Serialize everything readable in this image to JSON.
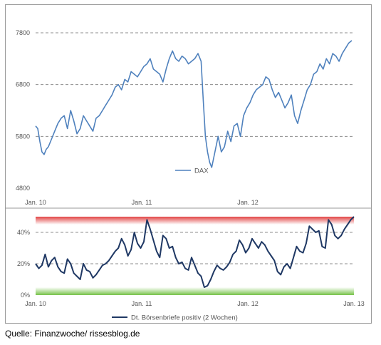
{
  "source": "Quelle: Finanzwoche/ rissesblog.de",
  "chart_data": [
    {
      "type": "line",
      "title": "",
      "xlabel": "",
      "ylabel": "",
      "x_ticks": [
        "Jan. 10",
        "Jan. 11",
        "Jan. 12"
      ],
      "y_ticks": [
        4800,
        5800,
        6800,
        7800
      ],
      "ylim": [
        4800,
        7800
      ],
      "xlim": [
        2010.0,
        2013.0
      ],
      "grid": "horizontal dashed",
      "legend_position": "bottom-center",
      "series": [
        {
          "name": "DAX",
          "color": "#4f81bd",
          "x": [
            2010.0,
            2010.02,
            2010.04,
            2010.06,
            2010.08,
            2010.1,
            2010.12,
            2010.15,
            2010.18,
            2010.21,
            2010.24,
            2010.27,
            2010.3,
            2010.33,
            2010.36,
            2010.39,
            2010.42,
            2010.45,
            2010.48,
            2010.51,
            2010.54,
            2010.57,
            2010.6,
            2010.63,
            2010.66,
            2010.69,
            2010.72,
            2010.75,
            2010.78,
            2010.81,
            2010.84,
            2010.87,
            2010.9,
            2010.93,
            2010.96,
            2010.99,
            2011.02,
            2011.05,
            2011.08,
            2011.11,
            2011.14,
            2011.17,
            2011.2,
            2011.23,
            2011.26,
            2011.29,
            2011.32,
            2011.35,
            2011.38,
            2011.41,
            2011.44,
            2011.47,
            2011.5,
            2011.53,
            2011.56,
            2011.58,
            2011.6,
            2011.62,
            2011.64,
            2011.66,
            2011.68,
            2011.7,
            2011.72,
            2011.75,
            2011.78,
            2011.81,
            2011.84,
            2011.87,
            2011.9,
            2011.93,
            2011.96,
            2011.99,
            2012.02,
            2012.05,
            2012.08,
            2012.11,
            2012.14,
            2012.17,
            2012.2,
            2012.23,
            2012.26,
            2012.29,
            2012.32,
            2012.35,
            2012.38,
            2012.41,
            2012.44,
            2012.47,
            2012.5,
            2012.53,
            2012.56,
            2012.59,
            2012.62,
            2012.65,
            2012.68,
            2012.71,
            2012.74,
            2012.77,
            2012.8,
            2012.83,
            2012.86,
            2012.89,
            2012.92,
            2012.95,
            2012.98
          ],
          "values": [
            6000,
            5950,
            5700,
            5500,
            5450,
            5550,
            5600,
            5750,
            5900,
            6050,
            6150,
            6200,
            5950,
            6300,
            6100,
            5850,
            5950,
            6200,
            6100,
            6000,
            5900,
            6150,
            6200,
            6300,
            6400,
            6500,
            6600,
            6750,
            6800,
            6700,
            6900,
            6850,
            7050,
            7000,
            6950,
            7050,
            7150,
            7200,
            7300,
            7100,
            7050,
            7000,
            6850,
            7100,
            7300,
            7450,
            7300,
            7250,
            7350,
            7300,
            7200,
            7250,
            7300,
            7400,
            7250,
            6500,
            5800,
            5500,
            5300,
            5200,
            5400,
            5600,
            5800,
            5500,
            5600,
            5900,
            5700,
            6000,
            6050,
            5800,
            6200,
            6350,
            6450,
            6600,
            6700,
            6750,
            6800,
            6950,
            6900,
            6700,
            6550,
            6650,
            6500,
            6350,
            6450,
            6600,
            6200,
            6050,
            6300,
            6500,
            6700,
            6800,
            7000,
            7050,
            7200,
            7100,
            7300,
            7200,
            7400,
            7350,
            7250,
            7400,
            7500,
            7600,
            7650
          ]
        }
      ]
    },
    {
      "type": "line",
      "title": "",
      "xlabel": "",
      "ylabel": "",
      "x_ticks": [
        "Jan. 10",
        "Jan. 11",
        "Jan. 12",
        "Jan. 13"
      ],
      "y_ticks": [
        "0%",
        "20%",
        "40%"
      ],
      "ylim": [
        0,
        50
      ],
      "xlim": [
        2010.0,
        2013.0
      ],
      "grid": "horizontal dashed",
      "legend_position": "bottom-center",
      "bands": [
        {
          "from": 45,
          "to": 50,
          "color": "#e03a3a"
        },
        {
          "from": 0,
          "to": 5,
          "color": "#6fbf3f"
        }
      ],
      "series": [
        {
          "name": "Dt. Börsenbriefe positiv (2 Wochen)",
          "color": "#1f3864",
          "x": [
            2010.0,
            2010.03,
            2010.06,
            2010.09,
            2010.12,
            2010.15,
            2010.18,
            2010.21,
            2010.24,
            2010.27,
            2010.3,
            2010.33,
            2010.36,
            2010.39,
            2010.42,
            2010.45,
            2010.48,
            2010.51,
            2010.54,
            2010.57,
            2010.6,
            2010.63,
            2010.66,
            2010.69,
            2010.72,
            2010.75,
            2010.78,
            2010.81,
            2010.84,
            2010.87,
            2010.9,
            2010.93,
            2010.96,
            2010.99,
            2011.02,
            2011.05,
            2011.08,
            2011.11,
            2011.14,
            2011.17,
            2011.2,
            2011.23,
            2011.26,
            2011.29,
            2011.32,
            2011.35,
            2011.38,
            2011.41,
            2011.44,
            2011.47,
            2011.5,
            2011.53,
            2011.56,
            2011.59,
            2011.62,
            2011.65,
            2011.68,
            2011.71,
            2011.74,
            2011.77,
            2011.8,
            2011.83,
            2011.86,
            2011.89,
            2011.92,
            2011.95,
            2011.98,
            2012.01,
            2012.04,
            2012.07,
            2012.1,
            2012.13,
            2012.16,
            2012.19,
            2012.22,
            2012.25,
            2012.28,
            2012.31,
            2012.34,
            2012.37,
            2012.4,
            2012.43,
            2012.46,
            2012.49,
            2012.52,
            2012.55,
            2012.58,
            2012.61,
            2012.64,
            2012.67,
            2012.7,
            2012.73,
            2012.76,
            2012.79,
            2012.82,
            2012.85,
            2012.88,
            2012.91,
            2012.94,
            2012.97,
            2013.0
          ],
          "values": [
            20,
            17,
            19,
            26,
            18,
            22,
            24,
            18,
            15,
            14,
            23,
            20,
            14,
            12,
            10,
            20,
            16,
            15,
            11,
            13,
            16,
            19,
            20,
            22,
            25,
            28,
            30,
            36,
            32,
            25,
            29,
            40,
            33,
            30,
            34,
            48,
            42,
            35,
            28,
            24,
            38,
            36,
            30,
            31,
            24,
            20,
            21,
            17,
            16,
            24,
            19,
            14,
            12,
            5,
            6,
            10,
            15,
            19,
            17,
            16,
            18,
            21,
            26,
            28,
            35,
            32,
            27,
            30,
            36,
            33,
            30,
            34,
            32,
            28,
            25,
            22,
            15,
            13,
            18,
            20,
            17,
            24,
            31,
            28,
            27,
            33,
            44,
            42,
            40,
            41,
            31,
            30,
            48,
            45,
            38,
            36,
            38,
            42,
            45,
            48,
            50
          ]
        }
      ]
    }
  ]
}
